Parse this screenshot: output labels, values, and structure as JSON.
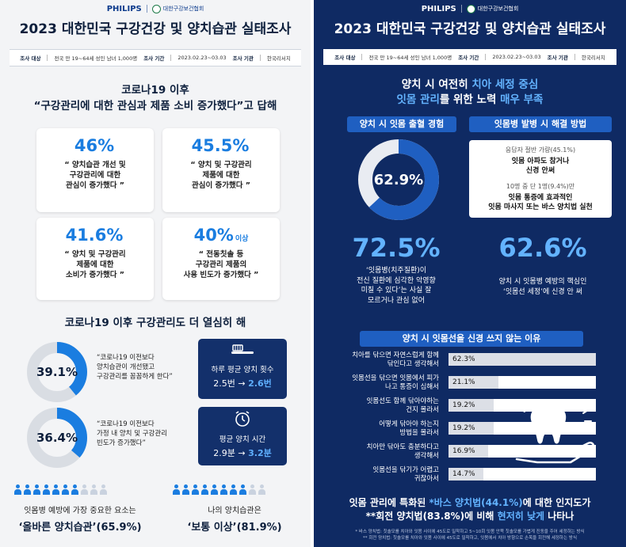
{
  "brand": {
    "philips": "PHILIPS",
    "association": "대한구강보건협회"
  },
  "title": "2023 대한민국 구강건강 및 양치습관 실태조사",
  "survey": {
    "target_label": "조사 대상",
    "target_value": "전국 만 19~64세 성인 남녀 1,000명",
    "period_label": "조사 기간",
    "period_value": "2023.02.23~03.03",
    "org_label": "조사 기관",
    "org_value": "한국리서치"
  },
  "left": {
    "section1": {
      "head1": "코로나19 이후",
      "head2": "“구강관리에 대한 관심과 제품 소비 증가했다”고 답해",
      "cards": [
        {
          "pct": "46%",
          "suffix": "",
          "text": "“ 양치습관 개선 및\n구강관리에 대한\n관심이 증가했다 ”"
        },
        {
          "pct": "45.5%",
          "suffix": "",
          "text": "“ 양치 및 구강관리\n제품에 대한\n관심이 증가했다 ”"
        },
        {
          "pct": "41.6%",
          "suffix": "",
          "text": "“ 양치 및 구강관리\n제품에 대한\n소비가 증가했다 ”"
        },
        {
          "pct": "40%",
          "suffix": "이상",
          "text": "“ 전동칫솔 등\n구강관리 제품의\n사용 빈도가 증가했다 ”"
        }
      ]
    },
    "section2": {
      "head": "코로나19 이후 구강관리도 더 열심히 해",
      "donuts": [
        {
          "value": 39.1,
          "label": "39.1%",
          "quote": "“코로나19 이전보다\n양치습관이 개선됐고\n구강관리를 꼼꼼하게 한다”"
        },
        {
          "value": 36.4,
          "label": "36.4%",
          "quote": "“코로나19 이전보다\n가정 내 양치 및 구강관리\n빈도가 증가했다”"
        }
      ],
      "boxes": [
        {
          "icon": "toothbrush-icon",
          "label": "하루 평균 양치 횟수",
          "from": "2.5번",
          "arrow": "→",
          "to": "2.6번"
        },
        {
          "icon": "alarm-clock-icon",
          "label": "평균 양치 시간",
          "from": "2.9분",
          "arrow": "→",
          "to": "3.2분"
        }
      ]
    },
    "bottom": [
      {
        "question": "잇몸병 예방에 가장 중요한 요소는",
        "answer": "‘올바른 양치습관’(65.9%)",
        "share": 0.659
      },
      {
        "question": "나의 양치습관은",
        "answer": "‘보통 이상’(81.9%)",
        "share": 0.819
      }
    ]
  },
  "right": {
    "head": {
      "l1a": "양치 시 여전히 ",
      "l1b": "치아 세정 중심",
      "l2a": "잇몸 관리",
      "l2b": "를 위한 노력 ",
      "l2c": "매우 부족"
    },
    "bleed_title": "양치 시 잇몸 출혈 경험",
    "bleed": {
      "value": 62.9,
      "label": "62.9%"
    },
    "solution_title": "잇몸병 발병 시 해결 방법",
    "solution": {
      "sub1": "응답자 절반 가량(45.1%)",
      "main1": "잇몸 아파도 참거나\n신경 안써",
      "sub2": "10명 중 단 1명(9.4%)만",
      "main2": "잇몸 통증에 효과적인\n잇몸 마사지 또는 바스 양치법 실천"
    },
    "stat1": {
      "pct": "72.5%",
      "text": "‘잇몸병(치주질환)이\n전신 질환에 심각한 악영향\n미칠 수 있다’는 사실 잘\n모르거나 관심 없어"
    },
    "stat2": {
      "pct": "62.6%",
      "text": "양치 시 잇몸병 예방의 핵심인\n‘잇몸선 세정’에 신경 안 써"
    },
    "reasons_title": "양치 시 잇몸선을 신경 쓰지 않는 이유",
    "chart_data": {
      "type": "bar",
      "title": "양치 시 잇몸선을 신경 쓰지 않는 이유",
      "categories": [
        "치아를 닦으면 자연스럽게 함께\n닦인다고 생각해서",
        "잇몸선을 닦으면 잇몸에서 피가\n나고 통증이 심해서",
        "잇몸선도 함께 닦아야하는\n건지 몰라서",
        "어떻게 닦아야 하는지\n방법을 몰라서",
        "치아만 닦아도 충분하다고\n생각해서",
        "잇몸선을 닦기가 어렵고\n귀찮아서"
      ],
      "values": [
        62.3,
        21.1,
        19.2,
        19.2,
        16.9,
        14.7
      ],
      "value_labels": [
        "62.3%",
        "21.1%",
        "19.2%",
        "19.2%",
        "16.9%",
        "14.7%"
      ],
      "xlim": [
        0,
        100
      ]
    },
    "foot": {
      "l1a": "잇몸 관리에 특화된 ",
      "l1b": "*바스 양치법(44.1%)",
      "l1c": "에 대한 인지도가",
      "l2a": "**회전 양치법(83.8%)에 비해 ",
      "l2b": "현저히 낮게",
      "l2c": " 나타나"
    },
    "notes": [
      "* 바스 양치법: 칫솔모를 치아와 잇몸 사이에 45도로 밀착하고 5~10회 잇몸 안쪽 칫솔모를 가볍게 진동을 주어 세정하는 방식",
      "** 회전 양치법: 칫솔모를 치아와 잇몸 사이에 45도로 밀착하고, 잇몸에서 치아 방향으로 손목을 회전해 세정하는 방식"
    ]
  }
}
